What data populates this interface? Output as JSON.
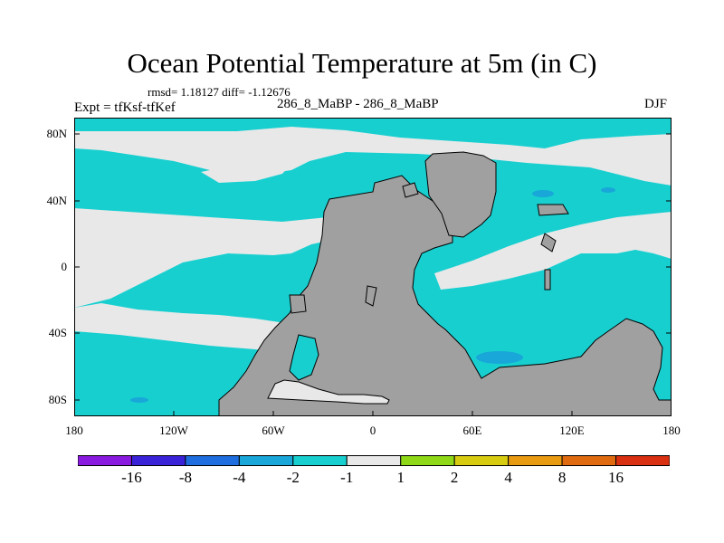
{
  "title": "Ocean Potential Temperature at 5m (in C)",
  "stats": "rmsd= 1.18127 diff= -1.12676",
  "expt": "Expt = tfKsf-tfKef",
  "cases": "286_8_MaBP - 286_8_MaBP",
  "season": "DJF",
  "lat_labels": [
    "80N",
    "40N",
    "0",
    "40S",
    "80S"
  ],
  "lat_values": [
    80,
    40,
    0,
    -40,
    -80
  ],
  "lon_labels": [
    "180",
    "120W",
    "60W",
    "0",
    "60E",
    "120E",
    "180"
  ],
  "lon_values": [
    -180,
    -120,
    -60,
    0,
    60,
    120,
    180
  ],
  "lat_range": [
    -90,
    90
  ],
  "lon_range": [
    -180,
    180
  ],
  "colorbar": {
    "levels": [
      "-16",
      "-8",
      "-4",
      "-2",
      "-1",
      "1",
      "2",
      "4",
      "8",
      "16"
    ],
    "colors": [
      "#8a1ae0",
      "#3a22d8",
      "#1f6ee0",
      "#18a7d8",
      "#18cfd0",
      "#e8e8e8",
      "#8ed818",
      "#d8cc10",
      "#e89a10",
      "#e06a10",
      "#d83010"
    ]
  },
  "map_colors": {
    "ocean_cool": "#18cfd0",
    "ocean_neutral": "#e8e8e8",
    "ocean_colder": "#18a7d8",
    "land": "#a0a0a0"
  }
}
